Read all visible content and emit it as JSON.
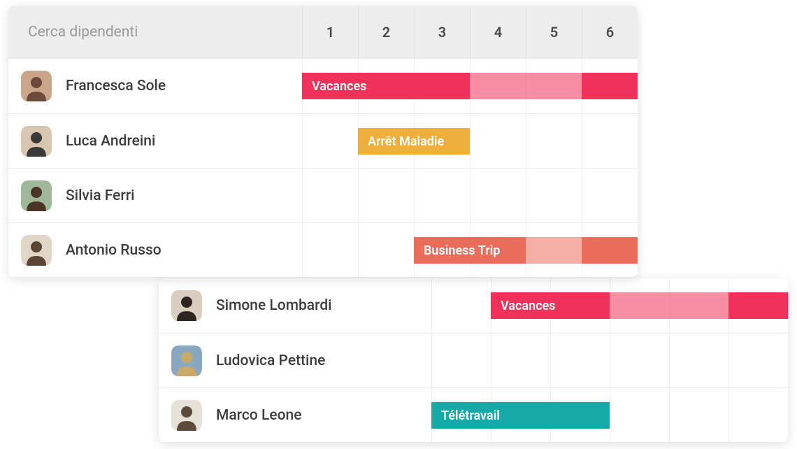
{
  "colors": {
    "red": "#f0325a",
    "red_fade": "rgba(240,50,90,0.55)",
    "orange": "#efae3c",
    "coral": "#ea6c5b",
    "coral_fade": "rgba(234,108,91,0.55)",
    "teal": "#15a9a8"
  },
  "front": {
    "search_placeholder": "Cerca dipendenti",
    "days": [
      "1",
      "2",
      "3",
      "4",
      "5",
      "6"
    ],
    "name_col_width": 420,
    "day_width": 80,
    "rows": [
      {
        "name": "Francesca Sole",
        "avatar_colors": [
          "#6b4a3a",
          "#c9a58a"
        ],
        "bars": [
          {
            "label": "Vacances",
            "start": 0,
            "span": 3,
            "color": "red"
          },
          {
            "label": "",
            "start": 3,
            "span": 2,
            "color": "red_fade"
          },
          {
            "label": "",
            "start": 5,
            "span": 1,
            "color": "red"
          }
        ]
      },
      {
        "name": "Luca Andreini",
        "avatar_colors": [
          "#3a3a3a",
          "#d8c6b0"
        ],
        "bars": [
          {
            "label": "Arrêt Maladie",
            "start": 1,
            "span": 2,
            "color": "orange"
          }
        ]
      },
      {
        "name": "Silvia Ferri",
        "avatar_colors": [
          "#4a3626",
          "#9fb89a"
        ],
        "bars": []
      },
      {
        "name": "Antonio Russo",
        "avatar_colors": [
          "#5a4534",
          "#e0d6c8"
        ],
        "bars": [
          {
            "label": "Business Trip",
            "start": 2,
            "span": 2,
            "color": "coral"
          },
          {
            "label": "",
            "start": 4,
            "span": 1,
            "color": "coral_fade"
          },
          {
            "label": "",
            "start": 5,
            "span": 1,
            "color": "coral"
          }
        ]
      }
    ]
  },
  "back": {
    "name_col_width": 390,
    "day_width": 85,
    "rows": [
      {
        "name": "Simone Lombardi",
        "avatar_colors": [
          "#2e2520",
          "#d9cdbd"
        ],
        "bars": [
          {
            "label": "Vacances",
            "start": 1,
            "span": 2,
            "color": "red"
          },
          {
            "label": "",
            "start": 3,
            "span": 2,
            "color": "red_fade"
          },
          {
            "label": "",
            "start": 5,
            "span": 1,
            "color": "red"
          }
        ]
      },
      {
        "name": "Ludovica Pettine",
        "avatar_colors": [
          "#c9a96a",
          "#8aa7c2"
        ],
        "bars": []
      },
      {
        "name": "Marco Leone",
        "avatar_colors": [
          "#5b4a3a",
          "#e6e1d8"
        ],
        "bars": [
          {
            "label": "Télétravail",
            "start": 0,
            "span": 3,
            "color": "teal"
          }
        ]
      }
    ]
  }
}
